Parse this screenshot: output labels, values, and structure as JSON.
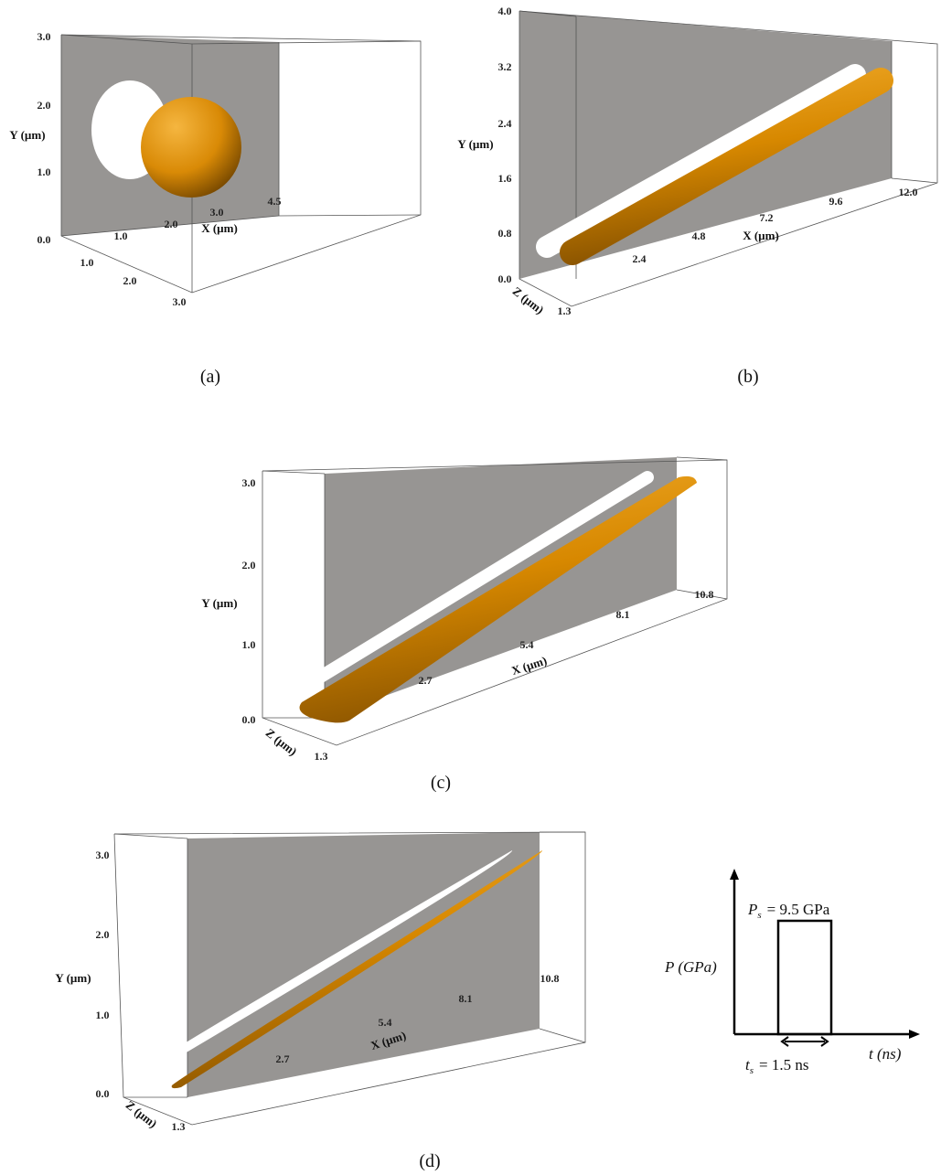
{
  "panels": [
    {
      "caption": "(a)",
      "y_label": "Y (µm)",
      "x_label": "X (µm)",
      "y_ticks": [
        "3.0",
        "2.0",
        "1.0",
        "0.0"
      ],
      "x_ticks": [
        "1.0",
        "2.0",
        "3.0",
        "4.5"
      ],
      "z_ticks": [
        "1.0",
        "2.0",
        "3.0"
      ]
    },
    {
      "caption": "(b)",
      "y_label": "Y (µm)",
      "x_label": "X (µm)",
      "z_label": "Z (µm)",
      "y_ticks": [
        "4.0",
        "3.2",
        "2.4",
        "1.6",
        "0.8",
        "0.0"
      ],
      "x_ticks": [
        "2.4",
        "4.8",
        "7.2",
        "9.6",
        "12.0"
      ],
      "z_ticks": [
        "1.3"
      ]
    },
    {
      "caption": "(c)",
      "y_label": "Y (µm)",
      "x_label": "X (µm)",
      "z_label": "Z (µm)",
      "y_ticks": [
        "3.0",
        "2.0",
        "1.0",
        "0.0"
      ],
      "x_ticks": [
        "2.7",
        "5.4",
        "8.1",
        "10.8"
      ],
      "z_ticks": [
        "1.3"
      ]
    },
    {
      "caption": "(d)",
      "y_label": "Y (µm)",
      "x_label": "X (µm)",
      "z_label": "Z (µm)",
      "y_ticks": [
        "3.0",
        "2.0",
        "1.0",
        "0.0"
      ],
      "x_ticks": [
        "2.7",
        "5.4",
        "8.1",
        "10.8"
      ],
      "z_ticks": [
        "1.3"
      ]
    }
  ],
  "pulse": {
    "y_label": "P (GPa)",
    "x_label": "t (ns)",
    "peak": {
      "symbol": "P",
      "subscript": "s",
      "text": "=  9.5 GPa"
    },
    "duration": {
      "symbol": "t",
      "subscript": "s",
      "text": "=  1.5 ns"
    }
  }
}
